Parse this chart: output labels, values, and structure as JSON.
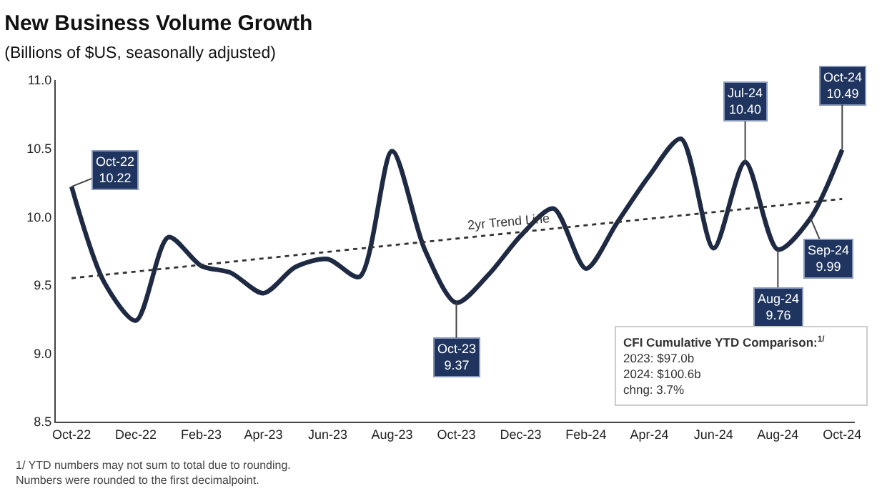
{
  "chart_data": {
    "type": "line",
    "title": "New Business Volume Growth",
    "subtitle": "(Billions of $US, seasonally adjusted)",
    "x": [
      "2022-10",
      "2022-11",
      "2022-12",
      "2023-01",
      "2023-02",
      "2023-03",
      "2023-04",
      "2023-05",
      "2023-06",
      "2023-07",
      "2023-08",
      "2023-09",
      "2023-10",
      "2023-11",
      "2023-12",
      "2024-01",
      "2024-02",
      "2024-03",
      "2024-04",
      "2024-05",
      "2024-06",
      "2024-07",
      "2024-08",
      "2024-09",
      "2024-10"
    ],
    "series": [
      {
        "color": "#1e2a44",
        "values": [
          10.22,
          9.52,
          9.24,
          9.85,
          9.64,
          9.59,
          9.44,
          9.63,
          9.69,
          9.56,
          10.48,
          9.76,
          9.37,
          9.58,
          9.86,
          10.06,
          9.62,
          9.95,
          10.3,
          10.57,
          9.77,
          10.4,
          9.76,
          9.99,
          10.49
        ]
      },
      {
        "name": "2yr Trend Line",
        "color": "#333333",
        "line_style": "dotted",
        "x": [
          "2022-10",
          "2024-10"
        ],
        "values": [
          9.55,
          10.13
        ]
      }
    ],
    "xlim": [
      "2022-09-16",
      "2024-10-13"
    ],
    "xticks": [
      {
        "value": "2022-10",
        "label": "Oct-22"
      },
      {
        "value": "2022-12",
        "label": "Dec-22"
      },
      {
        "value": "2023-02",
        "label": "Feb-23"
      },
      {
        "value": "2023-04",
        "label": "Apr-23"
      },
      {
        "value": "2023-06",
        "label": "Jun-23"
      },
      {
        "value": "2023-08",
        "label": "Aug-23"
      },
      {
        "value": "2023-10",
        "label": "Oct-23"
      },
      {
        "value": "2023-12",
        "label": "Dec-23"
      },
      {
        "value": "2024-02",
        "label": "Feb-24"
      },
      {
        "value": "2024-04",
        "label": "Apr-24"
      },
      {
        "value": "2024-06",
        "label": "Jun-24"
      },
      {
        "value": "2024-08",
        "label": "Aug-24"
      },
      {
        "value": "2024-10",
        "label": "Oct-24"
      }
    ],
    "ylim": [
      8.5,
      11.0
    ],
    "yticks": [
      {
        "value": 8.5,
        "label": "8.5"
      },
      {
        "value": 9.0,
        "label": "9.0"
      },
      {
        "value": 9.5,
        "label": "9.5"
      },
      {
        "value": 10.0,
        "label": "10.0"
      },
      {
        "value": 10.5,
        "label": "10.5"
      },
      {
        "value": 11.0,
        "label": "11.0"
      }
    ],
    "legend": false,
    "marker": "none",
    "line_style": "solid",
    "annotations": [
      {
        "text": "Oct-22\n10.22",
        "x": "2022-10",
        "y": 10.22
      },
      {
        "text": "Oct-23\n9.37",
        "x": "2023-10",
        "y": 9.37
      },
      {
        "text": "Jul-24\n10.40",
        "x": "2024-07",
        "y": 10.4
      },
      {
        "text": "Aug-24\n9.76",
        "x": "2024-08",
        "y": 9.76
      },
      {
        "text": "Sep-24\n9.99",
        "x": "2024-09",
        "y": 9.99
      },
      {
        "text": "Oct-24\n10.49",
        "x": "2024-10",
        "y": 10.49
      },
      "CFI Cumulative YTD Comparison:$^{1/}$\n2023: $97.0b\n2024: $100.6b\nchng: 3.7%",
      "1/ YTD numbers may not sum to total due to rounding.\nNumbers were rounded to the first decimalpoint."
    ]
  }
}
